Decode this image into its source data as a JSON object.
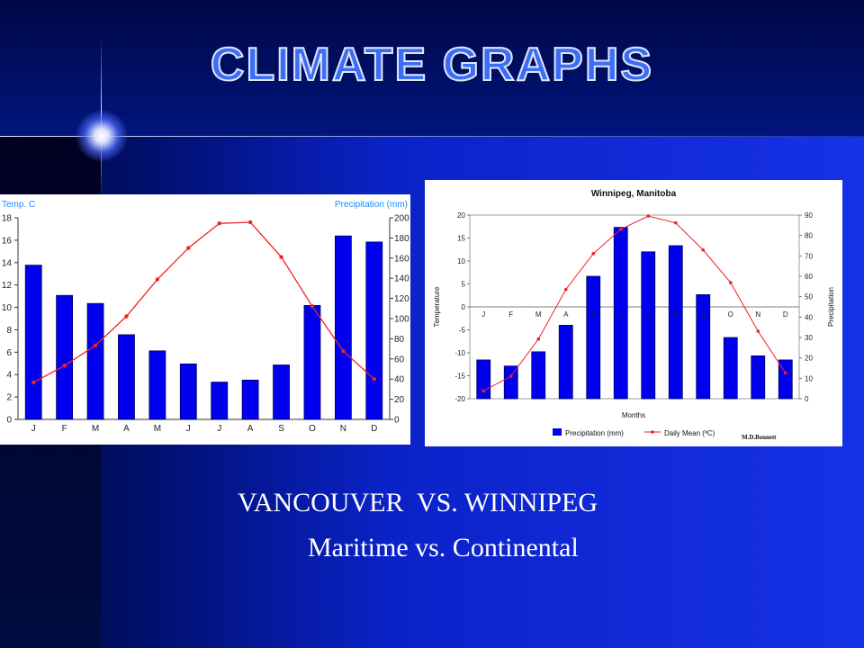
{
  "slide": {
    "title": "CLIMATE GRAPHS",
    "caption_line1": "VANCOUVER  VS. WINNIPEG",
    "caption_line2": "Maritime vs. Continental"
  },
  "colors": {
    "precip_bar": "#0000ee",
    "temp_line": "#ee2222",
    "title_fill": "#3d6df5",
    "vancouver_axis_label": "#1a8cff"
  },
  "chart_data": [
    {
      "type": "bar",
      "title": "",
      "months": [
        "J",
        "F",
        "M",
        "A",
        "M",
        "J",
        "J",
        "A",
        "S",
        "O",
        "N",
        "D"
      ],
      "left_axis_label": "Temp. C",
      "right_axis_label": "Precipitation (mm)",
      "left_ticks": [
        0,
        2,
        4,
        6,
        8,
        10,
        12,
        14,
        16,
        18
      ],
      "right_ticks": [
        0,
        20,
        40,
        60,
        80,
        100,
        120,
        140,
        160,
        180,
        200
      ],
      "temp_range": [
        0,
        18
      ],
      "precip_range": [
        0,
        200
      ],
      "series": [
        {
          "kind": "bar",
          "axis": "right",
          "values": [
            153,
            123,
            115,
            84,
            68,
            55,
            37,
            39,
            54,
            113,
            182,
            176
          ]
        },
        {
          "kind": "line",
          "axis": "left",
          "values": [
            3.3,
            4.8,
            6.6,
            9.2,
            12.5,
            15.3,
            17.5,
            17.6,
            14.5,
            10.1,
            6.1,
            3.6
          ]
        }
      ]
    },
    {
      "type": "bar",
      "title": "Winnipeg, Manitoba",
      "months": [
        "J",
        "F",
        "M",
        "A",
        "M",
        "J",
        "J",
        "A",
        "S",
        "O",
        "N",
        "D"
      ],
      "xlabel": "Months",
      "left_axis_label": "Temperature",
      "right_axis_label": "Precipitation",
      "left_ticks": [
        20,
        15,
        10,
        5,
        0,
        -5,
        -10,
        -15,
        -20
      ],
      "right_ticks": [
        90,
        80,
        70,
        60,
        50,
        40,
        30,
        20,
        10,
        0
      ],
      "temp_range": [
        -20,
        20
      ],
      "precip_range": [
        0,
        90
      ],
      "credit": "M.D.Bennett",
      "series": [
        {
          "name": "Precipitation (mm)",
          "kind": "bar",
          "axis": "right",
          "values": [
            19,
            16,
            23,
            36,
            60,
            84,
            72,
            75,
            51,
            30,
            21,
            19
          ]
        },
        {
          "name": "Daily Mean (ºC)",
          "kind": "line",
          "axis": "left",
          "values": [
            -18.3,
            -15.1,
            -7.0,
            3.8,
            11.6,
            16.9,
            19.8,
            18.3,
            12.4,
            5.3,
            -5.3,
            -14.4
          ]
        }
      ]
    }
  ]
}
